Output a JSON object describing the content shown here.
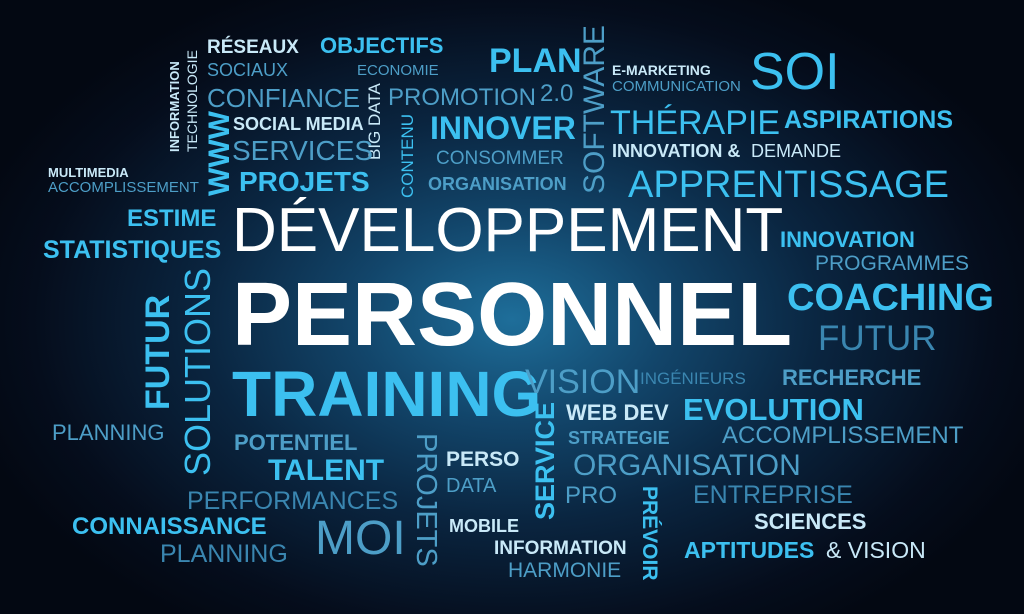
{
  "words": {
    "reseaux": "RÉSEAUX",
    "sociaux": "SOCIAUX",
    "objectifs": "OBJECTIFS",
    "economie": "ECONOMIE",
    "plan": "PLAN",
    "v20": "2.0",
    "software": "SOFTWARE",
    "emarketing": "E-MARKETING",
    "communication": "COMMUNICATION",
    "soi": "SOI",
    "information_v": "INFORMATION",
    "technologie_v": "TECHNOLOGIE",
    "confiance": "CONFIANCE",
    "bigdata": "BIG DATA",
    "promotion": "PROMOTION",
    "therapie": "THÉRAPIE",
    "aspirations": "ASPIRATIONS",
    "www": "WWW",
    "socialmedia": "SOCIAL MEDIA",
    "services": "SERVICES",
    "contenu": "CONTENU",
    "innover": "INNOVER",
    "consommer": "CONSOMMER",
    "innovation_and": "INNOVATION &",
    "demande": "DEMANDE",
    "multimedia": "MULTIMEDIA",
    "accomplissement_small": "ACCOMPLISSEMENT",
    "projets": "PROJETS",
    "organisation_small": "ORGANISATION",
    "apprentissage": "APPRENTISSAGE",
    "estime": "ESTIME",
    "statistiques": "STATISTIQUES",
    "developpement": "DÉVELOPPEMENT",
    "innovation": "INNOVATION",
    "programmes": "PROGRAMMES",
    "futur_v": "FUTUR",
    "solutions_v": "SOLUTIONS",
    "personnel": "PERSONNEL",
    "coaching": "COACHING",
    "futur": "FUTUR",
    "training": "TRAINING",
    "vision": "VISION",
    "ingenieurs": "INGÉNIEURS",
    "recherche": "RECHERCHE",
    "planning_1": "PLANNING",
    "web_dev": "WEB DEV",
    "evolution": "EVOLUTION",
    "service_v": "SERVICE",
    "potentiel": "POTENTIEL",
    "strategie": "STRATEGIE",
    "accomplissement": "ACCOMPLISSEMENT",
    "talent": "TALENT",
    "projets_v": "PROJETS",
    "perso": "PERSO",
    "organisation": "ORGANISATION",
    "data": "DATA",
    "performances": "PERFORMANCES",
    "pro": "PRO",
    "prevoir_v": "PRÉVOIR",
    "entreprise": "ENTREPRISE",
    "connaissance": "CONNAISSANCE",
    "mobile": "MOBILE",
    "moi": "MOI",
    "sciences": "SCIENCES",
    "planning_2": "PLANNING",
    "information": "INFORMATION",
    "harmonie": "HARMONIE",
    "aptitudes": "APTITUDES",
    "and_vision": "& VISION"
  },
  "colors": {
    "background_center": "#1e6e9a",
    "background_edge": "#030812",
    "primary_white": "#ffffff",
    "accent_cyan": "#2aa8e0"
  }
}
